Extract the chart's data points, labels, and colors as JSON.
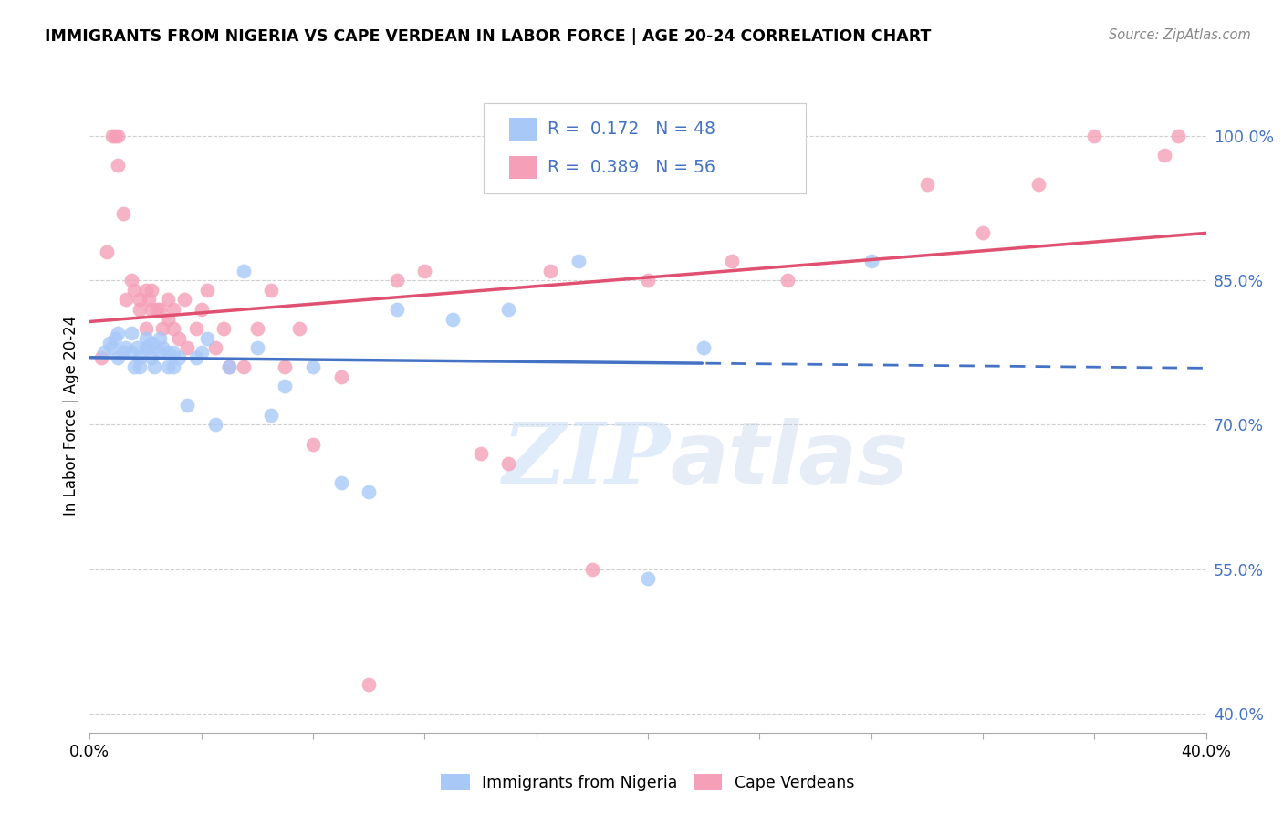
{
  "title": "IMMIGRANTS FROM NIGERIA VS CAPE VERDEAN IN LABOR FORCE | AGE 20-24 CORRELATION CHART",
  "source": "Source: ZipAtlas.com",
  "ylabel": "In Labor Force | Age 20-24",
  "xlim": [
    0.0,
    0.4
  ],
  "ylim": [
    0.38,
    1.04
  ],
  "yticks": [
    0.4,
    0.55,
    0.7,
    0.85,
    1.0
  ],
  "ytick_labels": [
    "40.0%",
    "55.0%",
    "70.0%",
    "85.0%",
    "100.0%"
  ],
  "xticks": [
    0.0,
    0.04,
    0.08,
    0.12,
    0.16,
    0.2,
    0.24,
    0.28,
    0.32,
    0.36,
    0.4
  ],
  "xtick_labels": [
    "0.0%",
    "",
    "",
    "",
    "",
    "",
    "",
    "",
    "",
    "",
    "40.0%"
  ],
  "nigeria_color": "#a8c8f8",
  "capeverde_color": "#f5a0b8",
  "nigeria_R": 0.172,
  "nigeria_N": 48,
  "capeverde_R": 0.389,
  "capeverde_N": 56,
  "line_nigeria_color": "#4472c4",
  "line_capeverde_color": "#e05070",
  "nigeria_line_solid_end": 0.22,
  "watermark_zip": "ZIP",
  "watermark_atlas": "atlas",
  "legend_title_nigeria": "R =  0.172   N = 48",
  "legend_title_cv": "R =  0.389   N = 56",
  "bottom_legend_nigeria": "Immigrants from Nigeria",
  "bottom_legend_cv": "Cape Verdeans",
  "nigeria_x": [
    0.005,
    0.007,
    0.008,
    0.009,
    0.01,
    0.01,
    0.012,
    0.013,
    0.015,
    0.015,
    0.016,
    0.017,
    0.018,
    0.018,
    0.02,
    0.02,
    0.021,
    0.022,
    0.022,
    0.023,
    0.025,
    0.025,
    0.026,
    0.028,
    0.028,
    0.03,
    0.03,
    0.032,
    0.035,
    0.038,
    0.04,
    0.042,
    0.045,
    0.05,
    0.055,
    0.06,
    0.065,
    0.07,
    0.08,
    0.09,
    0.1,
    0.11,
    0.13,
    0.15,
    0.175,
    0.2,
    0.22,
    0.28
  ],
  "nigeria_y": [
    0.775,
    0.785,
    0.78,
    0.79,
    0.795,
    0.77,
    0.775,
    0.78,
    0.795,
    0.775,
    0.76,
    0.78,
    0.77,
    0.76,
    0.78,
    0.79,
    0.78,
    0.77,
    0.785,
    0.76,
    0.775,
    0.79,
    0.78,
    0.775,
    0.76,
    0.775,
    0.76,
    0.77,
    0.72,
    0.77,
    0.775,
    0.79,
    0.7,
    0.76,
    0.86,
    0.78,
    0.71,
    0.74,
    0.76,
    0.64,
    0.63,
    0.82,
    0.81,
    0.82,
    0.87,
    0.54,
    0.78,
    0.87
  ],
  "capeverde_x": [
    0.004,
    0.006,
    0.008,
    0.009,
    0.01,
    0.01,
    0.012,
    0.013,
    0.015,
    0.016,
    0.018,
    0.018,
    0.02,
    0.02,
    0.021,
    0.022,
    0.022,
    0.024,
    0.025,
    0.026,
    0.028,
    0.028,
    0.03,
    0.03,
    0.032,
    0.034,
    0.035,
    0.038,
    0.04,
    0.042,
    0.045,
    0.048,
    0.05,
    0.055,
    0.06,
    0.065,
    0.07,
    0.075,
    0.08,
    0.09,
    0.1,
    0.11,
    0.12,
    0.14,
    0.15,
    0.165,
    0.18,
    0.2,
    0.23,
    0.25,
    0.3,
    0.32,
    0.34,
    0.36,
    0.385,
    0.39
  ],
  "capeverde_y": [
    0.77,
    0.88,
    1.0,
    1.0,
    0.97,
    1.0,
    0.92,
    0.83,
    0.85,
    0.84,
    0.82,
    0.83,
    0.84,
    0.8,
    0.83,
    0.82,
    0.84,
    0.82,
    0.82,
    0.8,
    0.81,
    0.83,
    0.8,
    0.82,
    0.79,
    0.83,
    0.78,
    0.8,
    0.82,
    0.84,
    0.78,
    0.8,
    0.76,
    0.76,
    0.8,
    0.84,
    0.76,
    0.8,
    0.68,
    0.75,
    0.43,
    0.85,
    0.86,
    0.67,
    0.66,
    0.86,
    0.55,
    0.85,
    0.87,
    0.85,
    0.95,
    0.9,
    0.95,
    1.0,
    0.98,
    1.0
  ]
}
